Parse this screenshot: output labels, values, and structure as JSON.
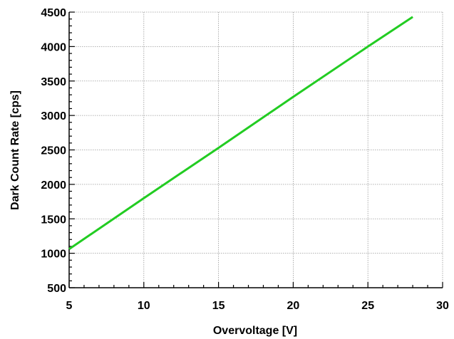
{
  "chart_data": {
    "type": "line",
    "title": "",
    "xlabel": "Overvoltage [V]",
    "ylabel": "Dark Count Rate [cps]",
    "xlim": [
      5,
      30
    ],
    "ylim": [
      500,
      4500
    ],
    "xticks": [
      5,
      10,
      15,
      20,
      25,
      30
    ],
    "yticks": [
      500,
      1000,
      1500,
      2000,
      2500,
      3000,
      3500,
      4000,
      4500
    ],
    "x_tick_labels": [
      "5",
      "10",
      "15",
      "20",
      "25",
      "30"
    ],
    "y_tick_labels": [
      "500",
      "1000",
      "1500",
      "2000",
      "2500",
      "3000",
      "3500",
      "4000",
      "4500"
    ],
    "grid": true,
    "series": [
      {
        "color": "#22cc22",
        "x": [
          5,
          10,
          15,
          20,
          25,
          28
        ],
        "y": [
          1060,
          1800,
          2530,
          3270,
          4000,
          4430
        ]
      }
    ]
  }
}
